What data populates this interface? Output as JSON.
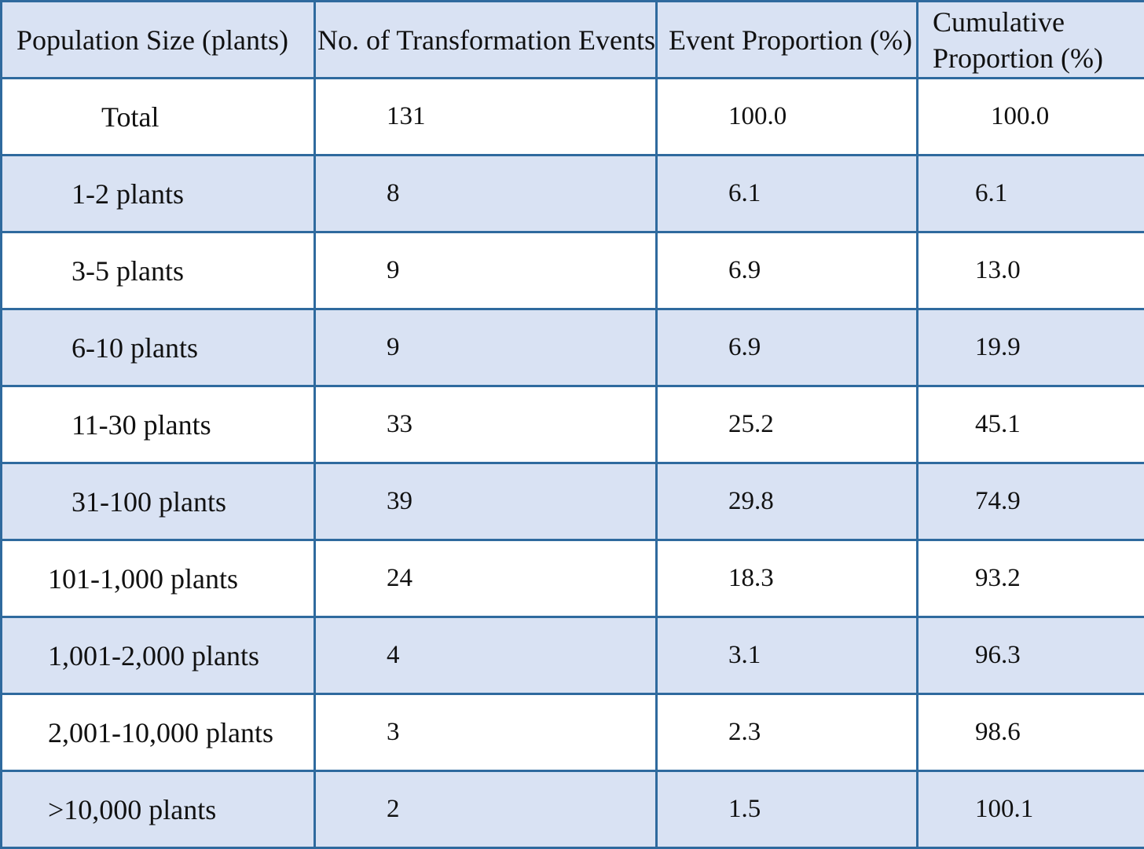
{
  "table": {
    "headers": [
      "Population Size (plants)",
      "No. of Transformation Events",
      "Event Proportion (%)",
      "Cumulative Proportion (%)"
    ],
    "rows": [
      {
        "size": "Total",
        "events": "131",
        "proportion": "100.0",
        "cumulative": "100.0"
      },
      {
        "size": "1-2 plants",
        "events": "8",
        "proportion": "6.1",
        "cumulative": "6.1"
      },
      {
        "size": "3-5 plants",
        "events": "9",
        "proportion": "6.9",
        "cumulative": "13.0"
      },
      {
        "size": "6-10 plants",
        "events": "9",
        "proportion": "6.9",
        "cumulative": "19.9"
      },
      {
        "size": "11-30 plants",
        "events": "33",
        "proportion": "25.2",
        "cumulative": "45.1"
      },
      {
        "size": "31-100 plants",
        "events": "39",
        "proportion": "29.8",
        "cumulative": "74.9"
      },
      {
        "size": "101-1,000 plants",
        "events": "24",
        "proportion": "18.3",
        "cumulative": "93.2"
      },
      {
        "size": "1,001-2,000 plants",
        "events": "4",
        "proportion": "3.1",
        "cumulative": "96.3"
      },
      {
        "size": "2,001-10,000 plants",
        "events": "3",
        "proportion": "2.3",
        "cumulative": "98.6"
      },
      {
        "size": ">10,000 plants",
        "events": "2",
        "proportion": "1.5",
        "cumulative": "100.1"
      }
    ]
  },
  "colors": {
    "border": "#2f6a9e",
    "header_fill": "#d9e2f3",
    "shaded_row_fill": "#d9e2f3",
    "plain_row_fill": "#ffffff"
  }
}
